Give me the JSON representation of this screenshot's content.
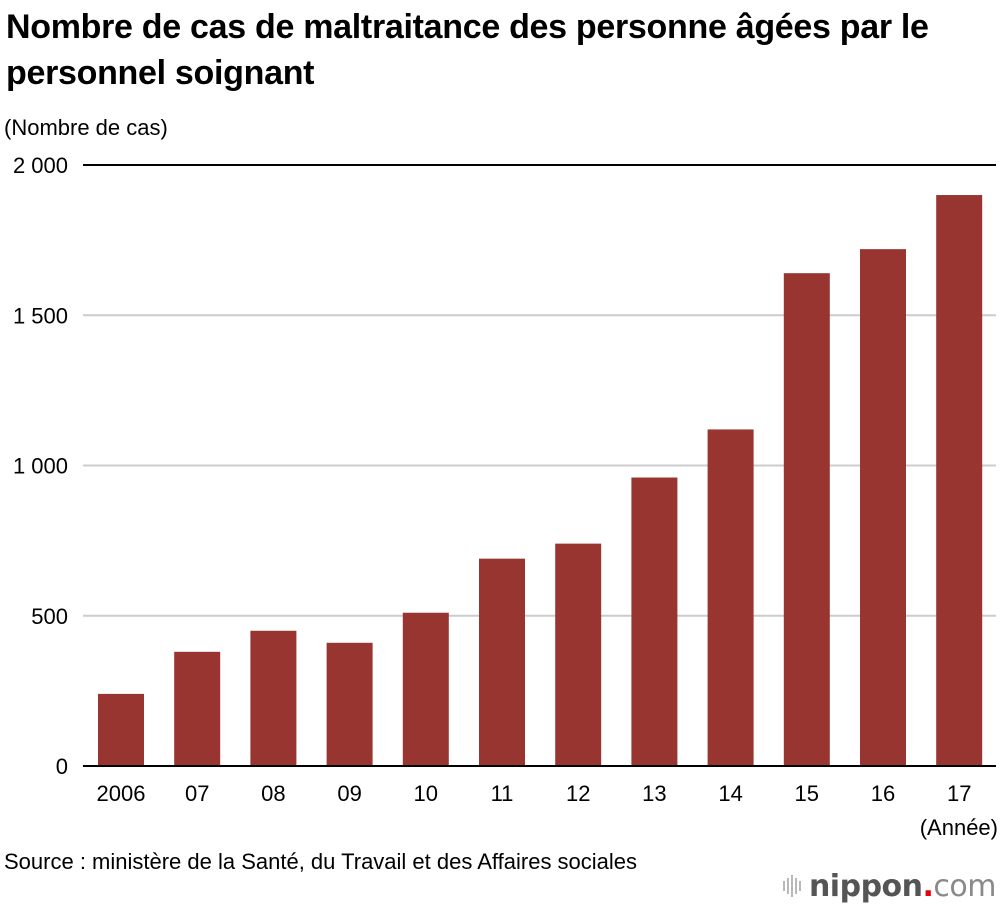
{
  "chart_data": {
    "type": "bar",
    "title": "Nombre de cas de maltraitance des personne âgées par le personnel soignant",
    "ylabel": "(Nombre de cas)",
    "xlabel": "(Année)",
    "categories": [
      "2006",
      "07",
      "08",
      "09",
      "10",
      "11",
      "12",
      "13",
      "14",
      "15",
      "16",
      "17"
    ],
    "values": [
      240,
      380,
      450,
      410,
      510,
      690,
      740,
      960,
      1120,
      1640,
      1720,
      1900
    ],
    "ylim": [
      0,
      2000
    ],
    "yticks": [
      0,
      500,
      1000,
      1500,
      2000
    ],
    "ytick_labels": [
      "0",
      "500",
      "1 000",
      "1 500",
      "2 000"
    ],
    "grid": true,
    "bar_color": "#993530",
    "gridline_color": "#cccccc",
    "axis_color": "#000000"
  },
  "source": "Source : ministère de la Santé, du Travail et des Affaires sociales",
  "logo": {
    "name": "nippon",
    "dot": ".",
    "suffix": "com"
  }
}
